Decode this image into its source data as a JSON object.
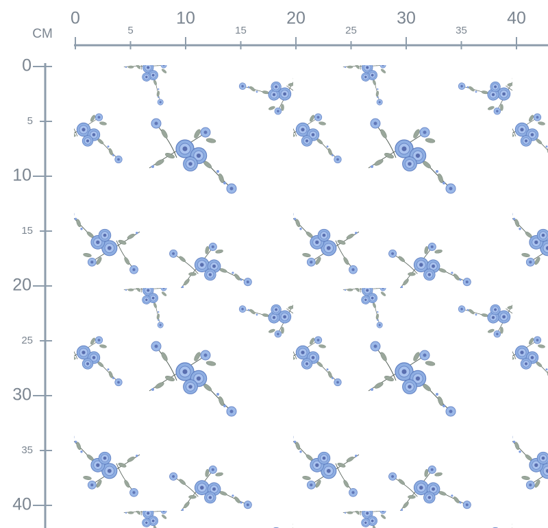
{
  "ruler": {
    "unit": "CM",
    "x_ticks": [
      0,
      5,
      10,
      15,
      20,
      25,
      30,
      35,
      40
    ],
    "y_ticks": [
      0,
      5,
      10,
      15,
      20,
      25,
      30,
      35,
      40
    ]
  }
}
